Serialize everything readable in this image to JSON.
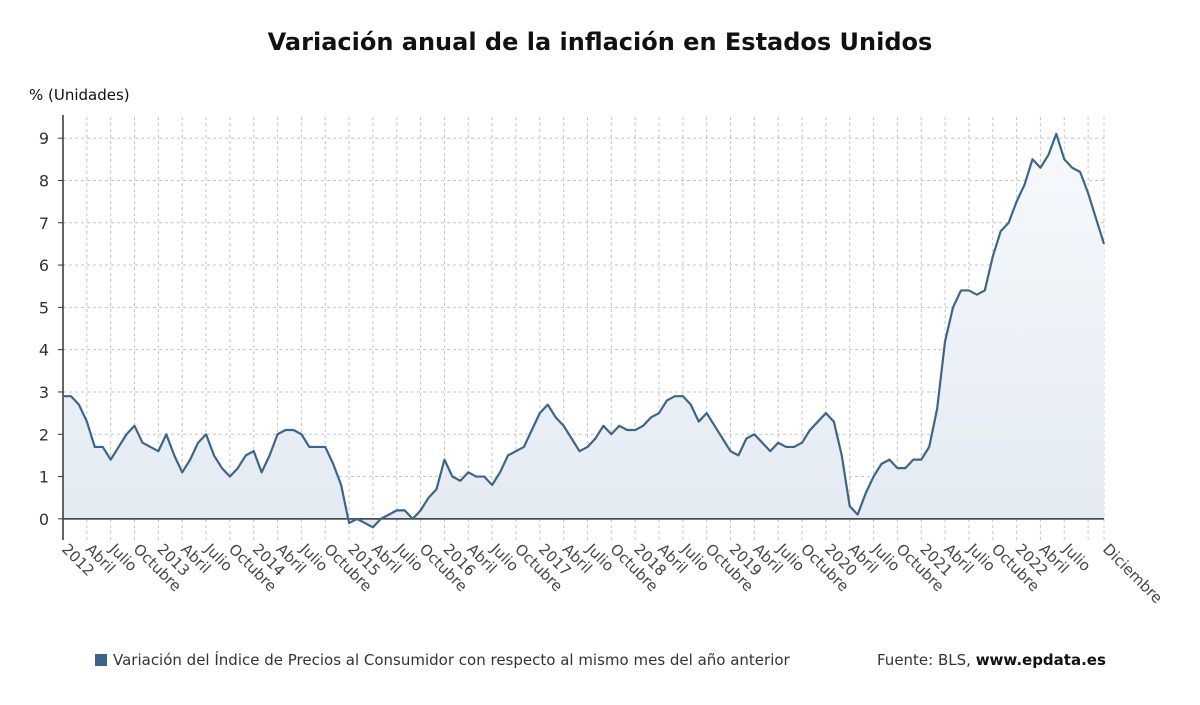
{
  "title": "Variación anual de la inflación en Estados Unidos",
  "legend": {
    "label": "Variación del Índice de Precios al Consumidor con respecto al mismo mes del año anterior",
    "color": "#3d6589"
  },
  "source": {
    "prefix": "Fuente: BLS,",
    "site": "www.epdata.es"
  },
  "chart_data": {
    "type": "area",
    "title": "Variación anual de la inflación en Estados Unidos",
    "ylabel": "% (Unidades)",
    "ylim": [
      -0.5,
      9.5
    ],
    "yticks": [
      0,
      1,
      2,
      3,
      4,
      5,
      6,
      7,
      8,
      9
    ],
    "grid": true,
    "legend_position": "bottom",
    "line_color": "#3d6589",
    "x_start": "2012-01",
    "x_end": "2022-12",
    "x_tick_labels": [
      "2012",
      "Abril",
      "Julio",
      "Octubre",
      "2013",
      "Abril",
      "Julio",
      "Octubre",
      "2014",
      "Abril",
      "Julio",
      "Octubre",
      "2015",
      "Abril",
      "Julio",
      "Octubre",
      "2016",
      "Abril",
      "Julio",
      "Octubre",
      "2017",
      "Abril",
      "Julio",
      "Octubre",
      "2018",
      "Abril",
      "Julio",
      "Octubre",
      "2019",
      "Abril",
      "Julio",
      "Octubre",
      "2020",
      "Abril",
      "Julio",
      "Octubre",
      "2021",
      "Abril",
      "Julio",
      "Octubre",
      "2022",
      "Abril",
      "Julio",
      "Diciembre"
    ],
    "series": [
      {
        "name": "Variación del Índice de Precios al Consumidor con respecto al mismo mes del año anterior",
        "values": [
          2.9,
          2.9,
          2.7,
          2.3,
          1.7,
          1.7,
          1.4,
          1.7,
          2.0,
          2.2,
          1.8,
          1.7,
          1.6,
          2.0,
          1.5,
          1.1,
          1.4,
          1.8,
          2.0,
          1.5,
          1.2,
          1.0,
          1.2,
          1.5,
          1.6,
          1.1,
          1.5,
          2.0,
          2.1,
          2.1,
          2.0,
          1.7,
          1.7,
          1.7,
          1.3,
          0.8,
          -0.1,
          0.0,
          -0.1,
          -0.2,
          0.0,
          0.1,
          0.2,
          0.2,
          0.0,
          0.2,
          0.5,
          0.7,
          1.4,
          1.0,
          0.9,
          1.1,
          1.0,
          1.0,
          0.8,
          1.1,
          1.5,
          1.6,
          1.7,
          2.1,
          2.5,
          2.7,
          2.4,
          2.2,
          1.9,
          1.6,
          1.7,
          1.9,
          2.2,
          2.0,
          2.2,
          2.1,
          2.1,
          2.2,
          2.4,
          2.5,
          2.8,
          2.9,
          2.9,
          2.7,
          2.3,
          2.5,
          2.2,
          1.9,
          1.6,
          1.5,
          1.9,
          2.0,
          1.8,
          1.6,
          1.8,
          1.7,
          1.7,
          1.8,
          2.1,
          2.3,
          2.5,
          2.3,
          1.5,
          0.3,
          0.1,
          0.6,
          1.0,
          1.3,
          1.4,
          1.2,
          1.2,
          1.4,
          1.4,
          1.7,
          2.6,
          4.2,
          5.0,
          5.4,
          5.4,
          5.3,
          5.4,
          6.2,
          6.8,
          7.0,
          7.5,
          7.9,
          8.5,
          8.3,
          8.6,
          9.1,
          8.5,
          8.3,
          8.2,
          7.7,
          7.1,
          6.5
        ]
      }
    ]
  }
}
